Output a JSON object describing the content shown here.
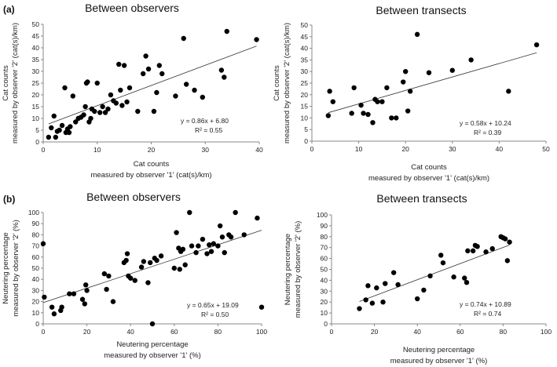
{
  "panel_labels": [
    "(a)",
    "(b)"
  ],
  "chart_data": [
    {
      "type": "scatter",
      "title": "Between observers",
      "xlabel": "Cat counts",
      "xlabel2": "measured by observer '1' (cat(s)/km)",
      "ylabel": "Cat counts",
      "ylabel2": "measured by observer '2' (cat(s)/km)",
      "xlim": [
        0,
        40
      ],
      "ylim": [
        0,
        50
      ],
      "xticks": [
        0,
        10,
        20,
        30,
        40
      ],
      "yticks": [
        0,
        5,
        10,
        15,
        20,
        25,
        30,
        35,
        40,
        45,
        50
      ],
      "trendline": {
        "slope": 0.86,
        "intercept": 6.8
      },
      "equation": "y = 0.86x + 6.80",
      "r2": "R² = 0.55",
      "x": [
        1.0,
        1.5,
        2.0,
        2.3,
        2.6,
        3.0,
        3.5,
        4.0,
        4.2,
        4.5,
        4.8,
        5.0,
        5.5,
        6.0,
        6.5,
        7.0,
        7.5,
        7.8,
        8.0,
        8.2,
        8.5,
        8.8,
        9.0,
        9.5,
        10.0,
        10.5,
        11.0,
        11.5,
        12.0,
        12.5,
        13.0,
        13.5,
        14.0,
        14.3,
        14.6,
        15.0,
        15.5,
        16.0,
        17.5,
        18.5,
        19.0,
        19.5,
        20.5,
        21.0,
        21.5,
        22.0,
        24.5,
        26.0,
        26.5,
        28.0,
        29.5,
        33.0,
        33.5,
        34.0,
        39.5
      ],
      "y": [
        2.0,
        6.0,
        11.0,
        2.0,
        4.5,
        5.0,
        7.0,
        23.0,
        4.0,
        5.5,
        4.0,
        6.5,
        19.5,
        8.5,
        10.0,
        10.5,
        11.5,
        15.0,
        25.0,
        25.5,
        8.5,
        10.0,
        14.0,
        13.0,
        25.0,
        12.5,
        15.0,
        12.5,
        14.0,
        20.0,
        17.5,
        16.5,
        33.0,
        22.0,
        15.5,
        32.5,
        17.0,
        23.0,
        13.0,
        29.0,
        36.5,
        31.0,
        13.0,
        21.0,
        32.5,
        29.0,
        19.5,
        44.0,
        24.5,
        22.0,
        19.0,
        30.5,
        27.5,
        47.0,
        43.5
      ]
    },
    {
      "type": "scatter",
      "title": "Between transects",
      "xlabel": "Cat counts",
      "xlabel2": "measured by observer '1' (cat(s)/km)",
      "ylabel": "Cat counts",
      "ylabel2": "measured by observer '2' (cat(s)/km)",
      "xlim": [
        0,
        50
      ],
      "ylim": [
        0,
        50
      ],
      "xticks": [
        0,
        10,
        20,
        30,
        40,
        50
      ],
      "yticks": [
        0,
        5,
        10,
        15,
        20,
        25,
        30,
        35,
        40,
        45,
        50
      ],
      "trendline": {
        "slope": 0.58,
        "intercept": 10.24
      },
      "equation": "y = 0.58x + 10.24",
      "r2": "R² = 0.39",
      "x": [
        3.5,
        3.8,
        4.5,
        8.5,
        9.0,
        10.5,
        11.0,
        12.0,
        13.0,
        13.5,
        14.0,
        15.0,
        16.0,
        17.0,
        18.0,
        19.5,
        20.0,
        20.5,
        21.0,
        22.5,
        25.0,
        30.0,
        34.0,
        42.0,
        48.0
      ],
      "y": [
        11.0,
        21.5,
        17.0,
        12.0,
        23.0,
        15.5,
        12.0,
        11.5,
        8.0,
        18.0,
        17.0,
        17.0,
        23.0,
        10.0,
        10.0,
        25.5,
        30.0,
        13.0,
        21.5,
        46.0,
        29.5,
        30.5,
        35.0,
        21.5,
        41.5
      ]
    },
    {
      "type": "scatter",
      "title": "Between observers",
      "xlabel": "Neutering percentage",
      "xlabel2": "measured by observer '1' (%)",
      "ylabel": "Neutering percentage",
      "ylabel2": "measured by observer '2' (%)",
      "xlim": [
        0,
        100
      ],
      "ylim": [
        0,
        100
      ],
      "xticks": [
        0,
        20,
        40,
        60,
        80,
        100
      ],
      "yticks": [
        0,
        10,
        20,
        30,
        40,
        50,
        60,
        70,
        80,
        90,
        100
      ],
      "trendline": {
        "slope": 0.65,
        "intercept": 19.09
      },
      "equation": "y = 0.65x + 19.09",
      "r2": "R² = 0.50",
      "x": [
        0,
        0.5,
        4,
        5,
        8,
        8.5,
        12,
        14,
        18,
        19,
        19.5,
        20,
        28,
        29,
        30,
        32,
        37,
        38,
        38.5,
        39,
        40,
        42,
        45,
        46,
        48,
        49,
        50,
        51,
        52,
        54,
        60,
        61,
        62,
        62.5,
        63,
        64,
        65,
        67,
        68,
        70,
        71,
        73,
        75,
        76,
        77,
        78,
        80,
        81,
        82,
        83,
        85,
        86,
        88,
        92,
        98,
        100
      ],
      "y": [
        72,
        24,
        15,
        9,
        12,
        15,
        27,
        27,
        22,
        18,
        35,
        30,
        45,
        31,
        43,
        20,
        55,
        57,
        63,
        43,
        41,
        39,
        51,
        56,
        37,
        55,
        0,
        59,
        57,
        61,
        50,
        82,
        68,
        49,
        65,
        67,
        53,
        100,
        70,
        64,
        70,
        76,
        63,
        71,
        65,
        72,
        70,
        88,
        78,
        64,
        80,
        78,
        100,
        80,
        95,
        15
      ]
    },
    {
      "type": "scatter",
      "title": "Between transects",
      "xlabel": "Neutering percentage",
      "xlabel2": "measured by observer '1' (%)",
      "ylabel": "Neutering percentage",
      "ylabel2": "measured by observer '2' (%)",
      "xlim": [
        0,
        100
      ],
      "ylim": [
        0,
        100
      ],
      "xticks": [
        0,
        20,
        40,
        60,
        80,
        100
      ],
      "yticks": [
        0,
        10,
        20,
        30,
        40,
        50,
        60,
        70,
        80,
        90,
        100
      ],
      "trendline": {
        "slope": 0.74,
        "intercept": 10.89
      },
      "equation": "y = 0.74x + 10.89",
      "r2": "R² = 0.74",
      "x": [
        13,
        16,
        17,
        19,
        21,
        24,
        25,
        29,
        31,
        40,
        43,
        46,
        51,
        52,
        57,
        62,
        63,
        63.5,
        66,
        67,
        68,
        72,
        75,
        79,
        80,
        81,
        82,
        83
      ],
      "y": [
        14,
        22,
        35,
        19,
        33,
        20,
        37,
        47,
        36,
        23,
        31,
        44,
        63,
        56,
        43,
        42,
        38,
        67,
        67,
        72,
        71,
        66,
        69,
        80,
        79,
        78,
        58,
        75
      ]
    }
  ]
}
